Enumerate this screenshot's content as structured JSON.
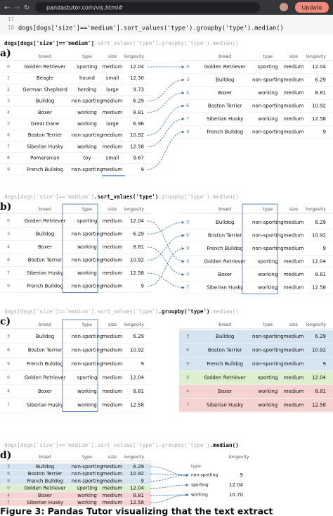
{
  "browser": {
    "url": "pandastutor.com/vis.html#",
    "button": "Update"
  },
  "editor": {
    "line_numbers": [
      "17",
      "18"
    ],
    "code": "dogs[dogs['size']=='medium'].sort_values('type').groupby('type').median()"
  },
  "panels": [
    {
      "label": "a)",
      "code": [
        "dogs[dogs['size']=='medium']",
        ".sort_values('type')",
        ".groupby('type')",
        ".median()"
      ],
      "left": {
        "columns": [
          "breed",
          "type",
          "size",
          "longevity"
        ],
        "rows": [
          [
            "0",
            "Golden Retriever",
            "sporting",
            "medium",
            "12.04"
          ],
          [
            "1",
            "Beagle",
            "hound",
            "small",
            "12.30"
          ],
          [
            "2",
            "German Shepherd",
            "herding",
            "large",
            "9.73"
          ],
          [
            "3",
            "Bulldog",
            "non-sporting",
            "medium",
            "6.29"
          ],
          [
            "4",
            "Boxer",
            "working",
            "medium",
            "8.81"
          ],
          [
            "5",
            "Great Dane",
            "working",
            "large",
            "6.96"
          ],
          [
            "6",
            "Boston Terrier",
            "non-sporting",
            "medium",
            "10.92"
          ],
          [
            "7",
            "Siberian Husky",
            "working",
            "medium",
            "12.58"
          ],
          [
            "8",
            "Pomeranian",
            "toy",
            "small",
            "9.67"
          ],
          [
            "9",
            "French Bulldog",
            "non-sporting",
            "medium",
            "9"
          ]
        ]
      },
      "right": {
        "rows": [
          [
            "0",
            "Golden Retriever",
            "sporting",
            "medium",
            "12.04"
          ],
          [
            "3",
            "Bulldog",
            "non-sporting",
            "medium",
            "6.29"
          ],
          [
            "4",
            "Boxer",
            "working",
            "medium",
            "8.81"
          ],
          [
            "6",
            "Boston Terrier",
            "non-sporting",
            "medium",
            "10.92"
          ],
          [
            "7",
            "Siberian Husky",
            "working",
            "medium",
            "12.58"
          ],
          [
            "9",
            "French Bulldog",
            "non-sporting",
            "medium",
            "9"
          ]
        ]
      }
    },
    {
      "label": "b)",
      "code": [
        "dogs[dogs['size']=='medium']",
        ".sort_values('type')",
        ".groupby('type')",
        ".median()"
      ],
      "left": {
        "columns": [
          "breed",
          "type",
          "size",
          "longevity"
        ],
        "rows": [
          [
            "0",
            "Golden Retriever",
            "sporting",
            "medium",
            "12.04"
          ],
          [
            "3",
            "Bulldog",
            "non-sporting",
            "medium",
            "6.29"
          ],
          [
            "4",
            "Boxer",
            "working",
            "medium",
            "8.81"
          ],
          [
            "6",
            "Boston Terrier",
            "non-sporting",
            "medium",
            "10.92"
          ],
          [
            "7",
            "Siberian Husky",
            "working",
            "medium",
            "12.58"
          ],
          [
            "9",
            "French Bulldog",
            "non-sporting",
            "medium",
            "9"
          ]
        ]
      },
      "right": {
        "columns": [
          "breed",
          "type",
          "size",
          "longevity"
        ],
        "rows": [
          [
            "3",
            "Bulldog",
            "non-sporting",
            "medium",
            "6.29"
          ],
          [
            "6",
            "Boston Terrier",
            "non-sporting",
            "medium",
            "10.92"
          ],
          [
            "9",
            "French Bulldog",
            "non-sporting",
            "medium",
            "9"
          ],
          [
            "0",
            "Golden Retriever",
            "sporting",
            "medium",
            "12.04"
          ],
          [
            "4",
            "Boxer",
            "working",
            "medium",
            "8.81"
          ],
          [
            "7",
            "Siberian Husky",
            "working",
            "medium",
            "12.58"
          ]
        ]
      }
    },
    {
      "label": "c)",
      "code": [
        "dogs[dogs['size']=='medium']",
        ".sort_values('type')",
        ".groupby('type')",
        ".median()"
      ],
      "left": {
        "columns": [
          "breed",
          "type",
          "size",
          "longevity"
        ],
        "rows": [
          [
            "3",
            "Bulldog",
            "non-sporting",
            "medium",
            "6.29"
          ],
          [
            "6",
            "Boston Terrier",
            "non-sporting",
            "medium",
            "10.92"
          ],
          [
            "9",
            "French Bulldog",
            "non-sporting",
            "medium",
            "9"
          ],
          [
            "0",
            "Golden Retriever",
            "sporting",
            "medium",
            "12.04"
          ],
          [
            "4",
            "Boxer",
            "working",
            "medium",
            "8.81"
          ],
          [
            "7",
            "Siberian Husky",
            "working",
            "medium",
            "12.58"
          ]
        ]
      },
      "right": {
        "columns": [
          "breed",
          "type",
          "size",
          "longevity"
        ],
        "rows": [
          [
            "3",
            "Bulldog",
            "non-sporting",
            "medium",
            "6.29"
          ],
          [
            "6",
            "Boston Terrier",
            "non-sporting",
            "medium",
            "10.92"
          ],
          [
            "9",
            "French Bulldog",
            "non-sporting",
            "medium",
            "9"
          ],
          [
            "0",
            "Golden Retriever",
            "sporting",
            "medium",
            "12.04"
          ],
          [
            "4",
            "Boxer",
            "working",
            "medium",
            "8.81"
          ],
          [
            "7",
            "Siberian Husky",
            "working",
            "medium",
            "12.58"
          ]
        ]
      }
    },
    {
      "label": "d)",
      "code": [
        "dogs[dogs['size']=='medium']",
        ".sort_values('type')",
        ".groupby('type')",
        ".median()"
      ],
      "left": {
        "columns": [
          "breed",
          "type",
          "size",
          "longevity"
        ],
        "rows": [
          [
            "3",
            "Bulldog",
            "non-sporting",
            "medium",
            "6.29"
          ],
          [
            "6",
            "Boston Terrier",
            "non-sporting",
            "medium",
            "10.92"
          ],
          [
            "9",
            "French Bulldog",
            "non-sporting",
            "medium",
            "9"
          ],
          [
            "0",
            "Golden Retriever",
            "sporting",
            "medium",
            "12.04"
          ],
          [
            "4",
            "Boxer",
            "working",
            "medium",
            "8.81"
          ],
          [
            "7",
            "Siberian Husky",
            "working",
            "medium",
            "12.58"
          ]
        ]
      },
      "right": {
        "columns": [
          "longevity"
        ],
        "index_name": "type",
        "rows": [
          [
            "non-sporting",
            "9"
          ],
          [
            "sporting",
            "12.04"
          ],
          [
            "working",
            "10.70"
          ]
        ]
      }
    }
  ],
  "group_colors": [
    "#d5e4f1",
    "#dcefcf",
    "#f7d2d2"
  ],
  "caption": "Figure 3: Pandas Tutor visualizing that the text extract"
}
